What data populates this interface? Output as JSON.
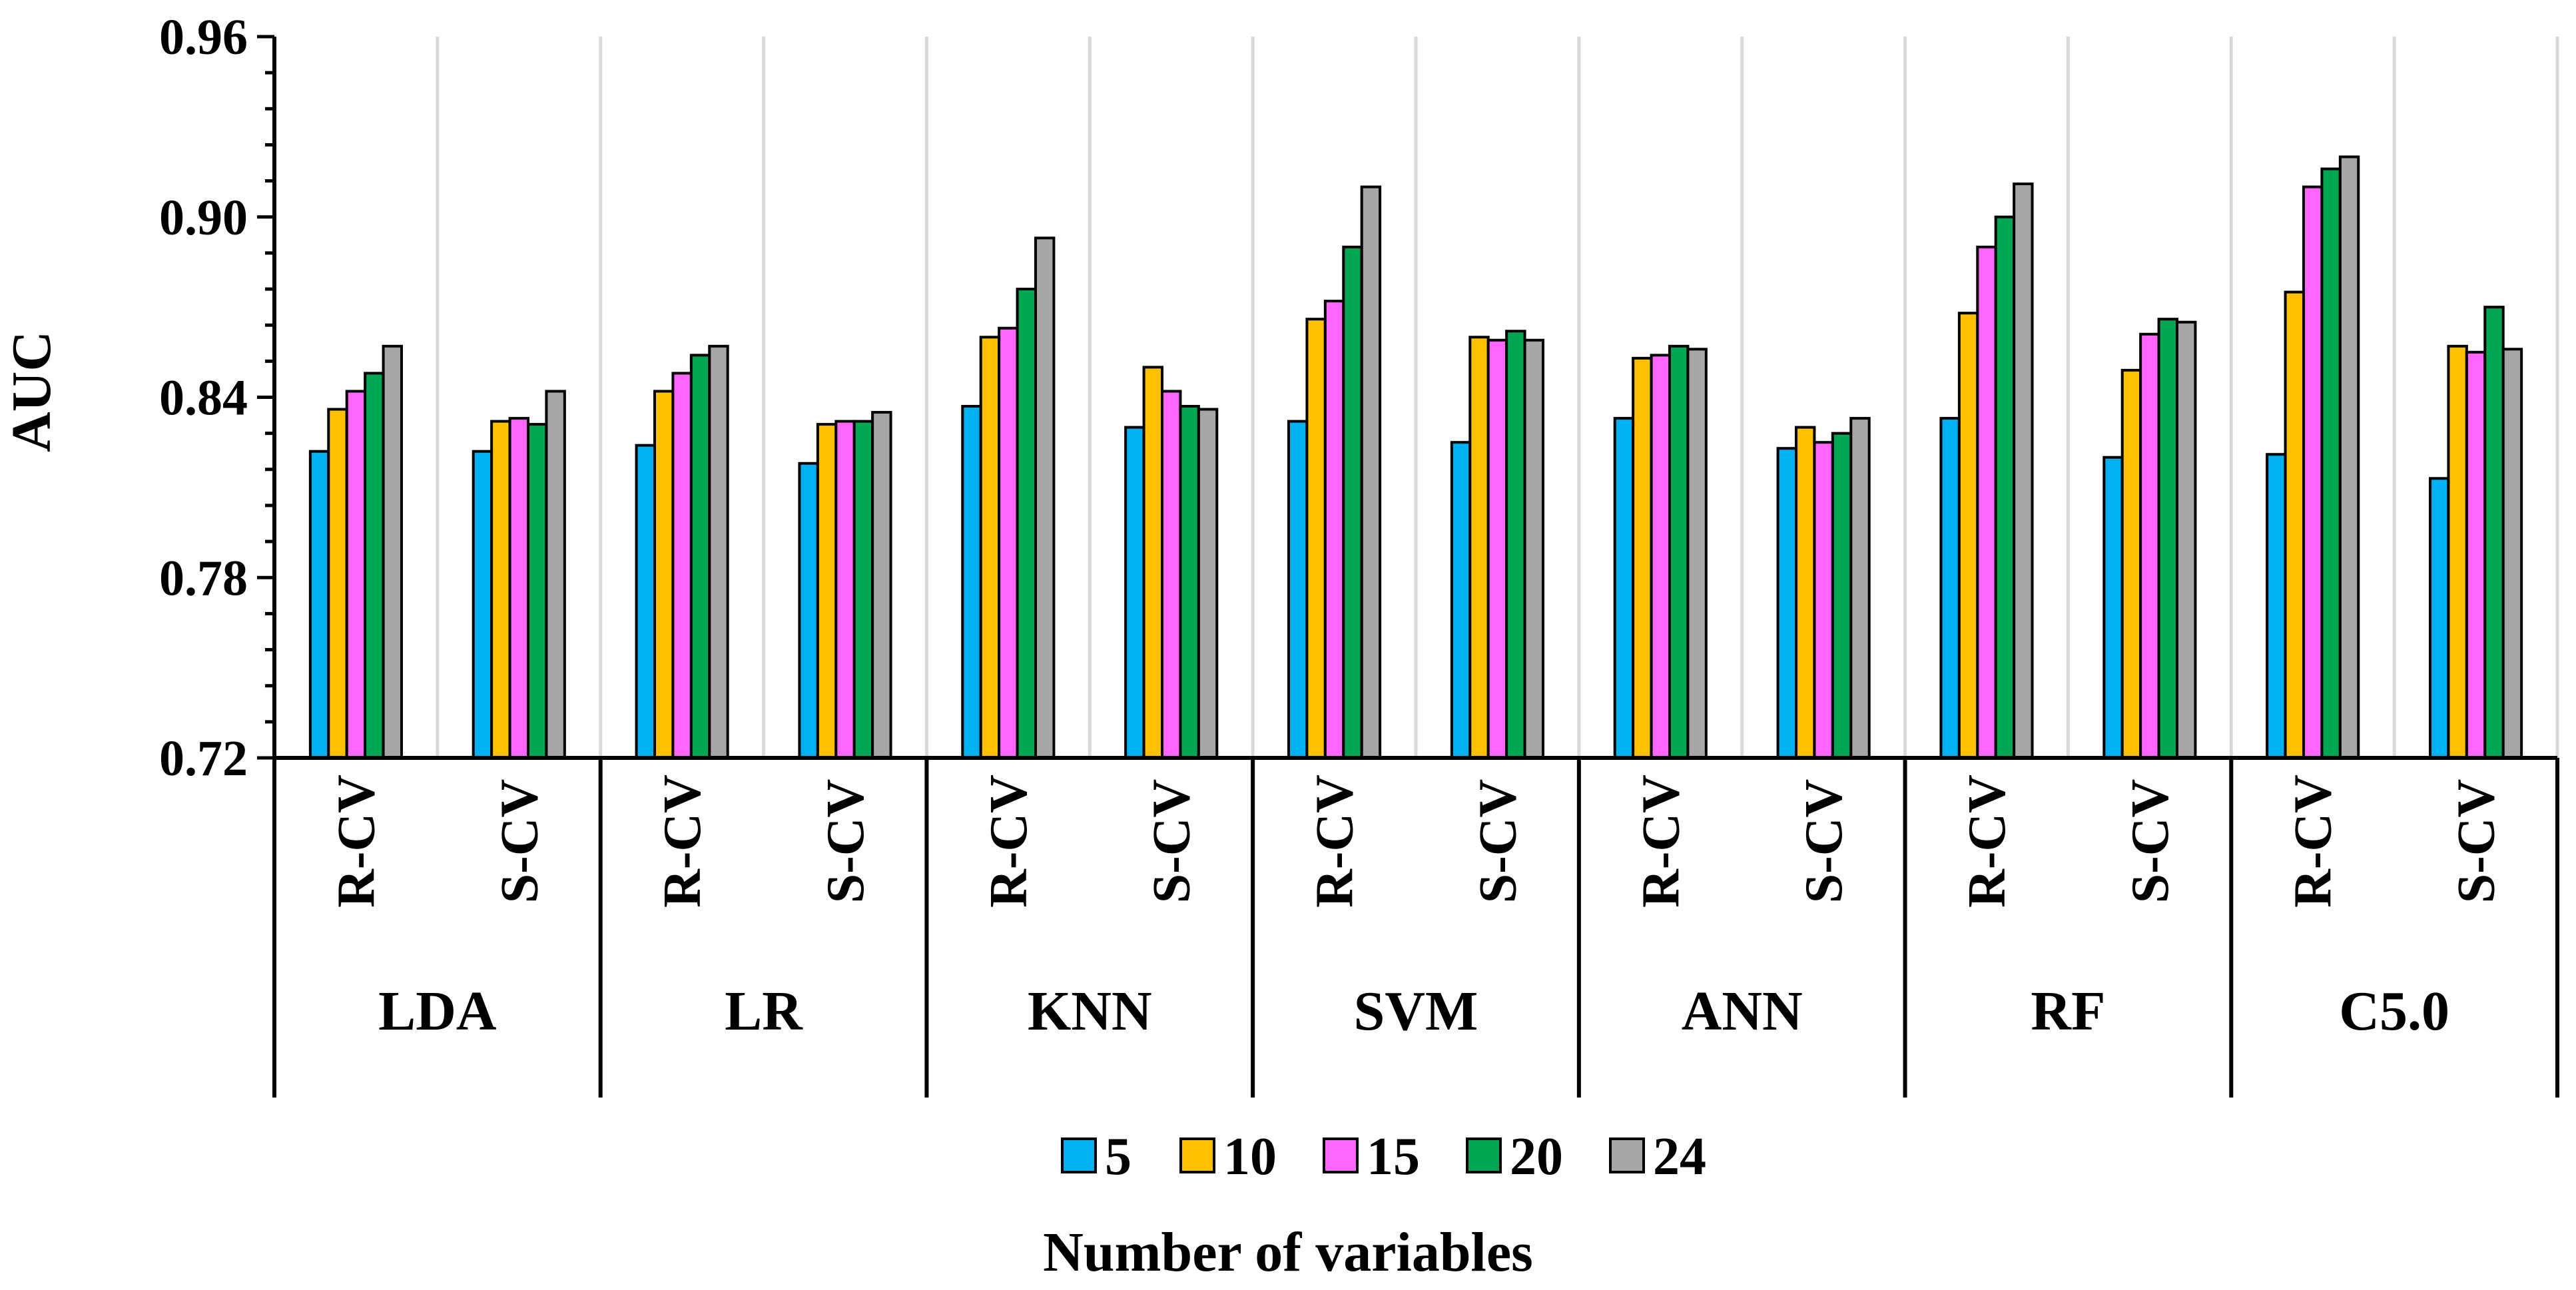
{
  "chart_data": {
    "type": "bar",
    "title": "",
    "xlabel": "Number of variables",
    "ylabel": "AUC",
    "ylim": [
      0.72,
      0.96
    ],
    "yticks": [
      "0.72",
      "0.78",
      "0.84",
      "0.90",
      "0.96"
    ],
    "grid": true,
    "legend_position": "bottom",
    "models": [
      "LDA",
      "LR",
      "KNN",
      "SVM",
      "ANN",
      "RF",
      "C5.0"
    ],
    "cv_types": [
      "R-CV",
      "S-CV"
    ],
    "categories": [
      "LDA R-CV",
      "LDA S-CV",
      "LR R-CV",
      "LR S-CV",
      "KNN R-CV",
      "KNN S-CV",
      "SVM R-CV",
      "SVM S-CV",
      "ANN R-CV",
      "ANN S-CV",
      "RF R-CV",
      "RF S-CV",
      "C5.0 R-CV",
      "C5.0 S-CV"
    ],
    "series": [
      {
        "name": "5",
        "color": "#00b0f0",
        "values": [
          0.822,
          0.822,
          0.824,
          0.818,
          0.837,
          0.83,
          0.832,
          0.825,
          0.833,
          0.823,
          0.833,
          0.82,
          0.821,
          0.813
        ]
      },
      {
        "name": "10",
        "color": "#ffc000",
        "values": [
          0.836,
          0.832,
          0.842,
          0.831,
          0.86,
          0.85,
          0.866,
          0.86,
          0.853,
          0.83,
          0.868,
          0.849,
          0.875,
          0.857
        ]
      },
      {
        "name": "15",
        "color": "#ff66ff",
        "values": [
          0.842,
          0.833,
          0.848,
          0.832,
          0.863,
          0.842,
          0.872,
          0.859,
          0.854,
          0.825,
          0.89,
          0.861,
          0.91,
          0.855
        ]
      },
      {
        "name": "20",
        "color": "#00a651",
        "values": [
          0.848,
          0.831,
          0.854,
          0.832,
          0.876,
          0.837,
          0.89,
          0.862,
          0.857,
          0.828,
          0.9,
          0.866,
          0.916,
          0.87
        ]
      },
      {
        "name": "24",
        "color": "#a6a6a6",
        "values": [
          0.857,
          0.842,
          0.857,
          0.835,
          0.893,
          0.836,
          0.91,
          0.859,
          0.856,
          0.833,
          0.911,
          0.865,
          0.92,
          0.856
        ]
      }
    ]
  }
}
